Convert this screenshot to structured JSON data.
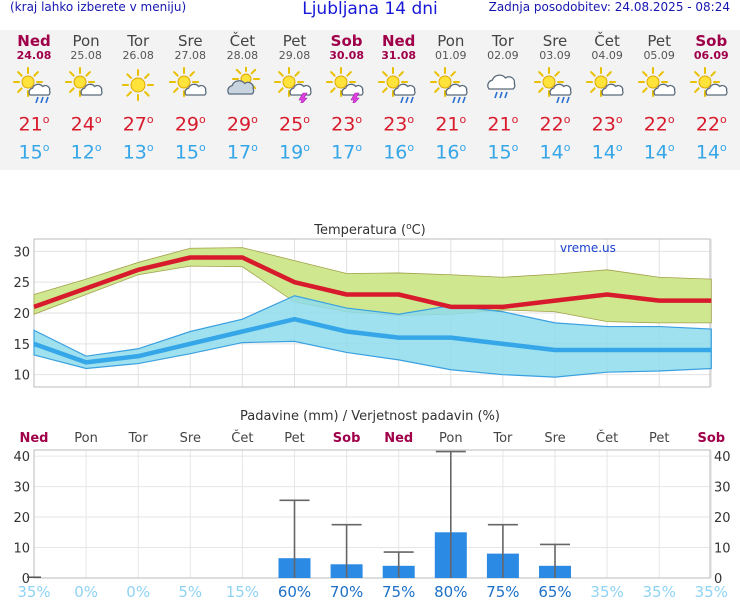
{
  "header": {
    "menu_hint": "(kraj lahko izberete v meniju)",
    "title": "Ljubljana 14 dni",
    "updated": "Zadnja posodobitev: 24.08.2025 - 08:24"
  },
  "days": [
    {
      "name": "Ned",
      "date": "24.08",
      "icon": "sun-cloud-rain-icon",
      "tmax": "21",
      "tmin": "15",
      "weekend": true
    },
    {
      "name": "Pon",
      "date": "25.08",
      "icon": "sun-cloud-icon",
      "tmax": "24",
      "tmin": "12",
      "weekend": false
    },
    {
      "name": "Tor",
      "date": "26.08",
      "icon": "sun-icon",
      "tmax": "27",
      "tmin": "13",
      "weekend": false
    },
    {
      "name": "Sre",
      "date": "27.08",
      "icon": "sun-cloud-icon",
      "tmax": "29",
      "tmin": "15",
      "weekend": false
    },
    {
      "name": "Čet",
      "date": "28.08",
      "icon": "cloud-sun-icon",
      "tmax": "29",
      "tmin": "17",
      "weekend": false
    },
    {
      "name": "Pet",
      "date": "29.08",
      "icon": "sun-cloud-storm-icon",
      "tmax": "25",
      "tmin": "19",
      "weekend": false
    },
    {
      "name": "Sob",
      "date": "30.08",
      "icon": "sun-cloud-storm-icon",
      "tmax": "23",
      "tmin": "17",
      "weekend": true
    },
    {
      "name": "Ned",
      "date": "31.08",
      "icon": "sun-cloud-rain-icon",
      "tmax": "23",
      "tmin": "16",
      "weekend": true
    },
    {
      "name": "Pon",
      "date": "01.09",
      "icon": "sun-cloud-rain-icon",
      "tmax": "21",
      "tmin": "16",
      "weekend": false
    },
    {
      "name": "Tor",
      "date": "02.09",
      "icon": "cloud-rain-icon",
      "tmax": "21",
      "tmin": "15",
      "weekend": false
    },
    {
      "name": "Sre",
      "date": "03.09",
      "icon": "sun-cloud-rain-icon",
      "tmax": "22",
      "tmin": "14",
      "weekend": false
    },
    {
      "name": "Čet",
      "date": "04.09",
      "icon": "sun-cloud-icon",
      "tmax": "23",
      "tmin": "14",
      "weekend": false
    },
    {
      "name": "Pet",
      "date": "05.09",
      "icon": "sun-cloud-icon",
      "tmax": "22",
      "tmin": "14",
      "weekend": false
    },
    {
      "name": "Sob",
      "date": "06.09",
      "icon": "sun-cloud-icon",
      "tmax": "22",
      "tmin": "14",
      "weekend": true
    }
  ],
  "colors": {
    "weekend": "#a0004a",
    "tmax": "#d81b2c",
    "tmin": "#35a6e8",
    "max_band": "#cfe88f",
    "min_band": "#8fdcec",
    "overlap": "#8ed28e",
    "bar": "#2b8ae4",
    "whisker": "#666666",
    "prob_low": "#8fd3f5",
    "prob_high": "#1c70c8"
  },
  "chart_data": [
    {
      "type": "line",
      "title": "Temperatura (",
      "title_unit": "C)",
      "degree": "o",
      "watermark": "vreme.us",
      "ylim": [
        8,
        32
      ],
      "yticks": [
        10,
        15,
        20,
        25,
        30
      ],
      "ytick_labels": [
        "10",
        "15",
        "20",
        "25",
        "30"
      ],
      "x": [
        "24.08",
        "25.08",
        "26.08",
        "27.08",
        "28.08",
        "29.08",
        "30.08",
        "31.08",
        "01.09",
        "02.09",
        "03.09",
        "04.09",
        "05.09",
        "06.09"
      ],
      "series": [
        {
          "role": "max_mean",
          "values": [
            21,
            24,
            27,
            29,
            29,
            25,
            23,
            23,
            21,
            21,
            22,
            23,
            22,
            22
          ]
        },
        {
          "role": "max_upper",
          "values": [
            23,
            25.5,
            28.2,
            30.5,
            30.6,
            28.5,
            26.4,
            26.5,
            26.2,
            25.8,
            26.3,
            27,
            25.8,
            25.5
          ]
        },
        {
          "role": "max_lower",
          "values": [
            19.8,
            23,
            26.2,
            27.6,
            27.5,
            21.8,
            20.2,
            19.6,
            19.8,
            20.5,
            20.2,
            18.6,
            18.4,
            18.4
          ]
        },
        {
          "role": "min_mean",
          "values": [
            15,
            12,
            13,
            15,
            17,
            19,
            17,
            16,
            16,
            15,
            14,
            14,
            14,
            14
          ]
        },
        {
          "role": "min_upper",
          "values": [
            17.2,
            13,
            14.2,
            17,
            19,
            22.8,
            20.8,
            19.8,
            21.2,
            20.2,
            18.4,
            17.8,
            17.8,
            17.4
          ]
        },
        {
          "role": "min_lower",
          "values": [
            13.2,
            11,
            11.8,
            13.4,
            15.2,
            15.4,
            13.6,
            12.4,
            10.8,
            10,
            9.6,
            10.4,
            10.6,
            11
          ]
        }
      ]
    },
    {
      "type": "bar",
      "title": "Padavine (mm) / Verjetnost padavin (%)",
      "categories": [
        "Ned",
        "Pon",
        "Tor",
        "Sre",
        "Čet",
        "Pet",
        "Sob",
        "Ned",
        "Pon",
        "Tor",
        "Sre",
        "Čet",
        "Pet",
        "Sob"
      ],
      "weekend": [
        true,
        false,
        false,
        false,
        false,
        false,
        true,
        true,
        false,
        false,
        false,
        false,
        false,
        true
      ],
      "ylim": [
        0,
        42
      ],
      "yticks": [
        0,
        10,
        20,
        30,
        40
      ],
      "ytick_labels": [
        "0",
        "10",
        "20",
        "30",
        "40"
      ],
      "values": [
        0.5,
        0,
        0,
        0,
        0,
        6.5,
        4.5,
        4,
        15,
        8,
        4,
        0,
        0,
        0
      ],
      "upper": [
        null,
        null,
        null,
        null,
        null,
        25.5,
        17.5,
        8.5,
        41.5,
        17.5,
        11,
        null,
        null,
        null
      ],
      "lower": [
        null,
        null,
        null,
        null,
        null,
        0,
        0,
        0,
        0,
        0,
        0,
        null,
        null,
        null
      ],
      "probability_labels": [
        "35%",
        "0%",
        "0%",
        "5%",
        "15%",
        "60%",
        "70%",
        "75%",
        "80%",
        "75%",
        "65%",
        "35%",
        "35%",
        "35%"
      ],
      "probability": [
        35,
        0,
        0,
        5,
        15,
        60,
        70,
        75,
        80,
        75,
        65,
        35,
        35,
        35
      ]
    }
  ]
}
